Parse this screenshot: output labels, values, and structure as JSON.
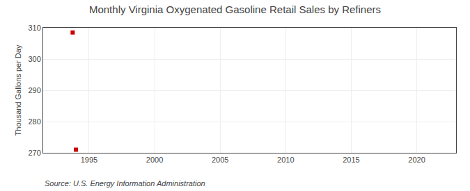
{
  "chart_data": {
    "type": "scatter",
    "title": "Monthly Virginia Oxygenated Gasoline Retail Sales by Refiners",
    "ylabel": "Thousand Gallons per Day",
    "annotations": [
      "Source: U.S. Energy Information Administration"
    ],
    "x": [
      1993.75,
      1994.0
    ],
    "values": [
      308.5,
      271.0
    ],
    "color": "#cc0000",
    "marker": "square",
    "xlim": [
      1991.5,
      2023
    ],
    "ylim": [
      270,
      310
    ],
    "xticks": [
      1995,
      2000,
      2005,
      2010,
      2015,
      2020
    ],
    "yticks": [
      270,
      280,
      290,
      300,
      310
    ],
    "grid": true
  }
}
